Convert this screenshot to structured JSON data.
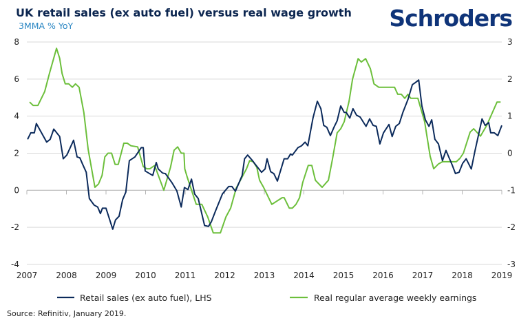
{
  "brand": "Schroders",
  "chart_data": {
    "type": "line",
    "title": "UK retail sales (ex auto fuel) versus real wage growth",
    "subtitle": "3MMA % YoY",
    "source": "Source: Refinitiv, January 2019.",
    "xlim": [
      2007,
      2019
    ],
    "x_ticks": [
      "2007",
      "2008",
      "2009",
      "2010",
      "2011",
      "2012",
      "2013",
      "2014",
      "2015",
      "2016",
      "2017",
      "2018",
      "2019"
    ],
    "ylim_left": [
      -4,
      8
    ],
    "y_ticks_left": [
      "8",
      "6",
      "4",
      "2",
      "0",
      "-2",
      "-4"
    ],
    "ylim_right": [
      -3,
      3
    ],
    "y_ticks_right": [
      "3",
      "2",
      "1",
      "0",
      "-1",
      "-2",
      "-3"
    ],
    "grid": true,
    "legend_position": "bottom",
    "colors": {
      "retail": "#0b2a5b",
      "wages": "#6cbf3b",
      "grid": "#d9d9d9",
      "axis": "#b5b5b5"
    },
    "series": [
      {
        "name": "Retail sales (ex auto fuel), LHS",
        "axis": "left",
        "points": [
          [
            2007.02,
            2.75
          ],
          [
            2007.1,
            3.1
          ],
          [
            2007.19,
            3.1
          ],
          [
            2007.24,
            3.6
          ],
          [
            2007.5,
            2.6
          ],
          [
            2007.59,
            2.75
          ],
          [
            2007.68,
            3.3
          ],
          [
            2007.83,
            2.9
          ],
          [
            2007.92,
            1.7
          ],
          [
            2008.01,
            1.9
          ],
          [
            2008.18,
            2.7
          ],
          [
            2008.27,
            1.8
          ],
          [
            2008.34,
            1.75
          ],
          [
            2008.41,
            1.4
          ],
          [
            2008.5,
            0.97
          ],
          [
            2008.58,
            -0.45
          ],
          [
            2008.7,
            -0.8
          ],
          [
            2008.79,
            -0.9
          ],
          [
            2008.86,
            -1.26
          ],
          [
            2008.91,
            -0.97
          ],
          [
            2009.0,
            -0.97
          ],
          [
            2009.17,
            -2.1
          ],
          [
            2009.24,
            -1.6
          ],
          [
            2009.33,
            -1.4
          ],
          [
            2009.42,
            -0.5
          ],
          [
            2009.5,
            -0.1
          ],
          [
            2009.59,
            1.6
          ],
          [
            2009.73,
            1.8
          ],
          [
            2009.89,
            2.3
          ],
          [
            2009.94,
            2.3
          ],
          [
            2009.99,
            1.04
          ],
          [
            2010.18,
            0.8
          ],
          [
            2010.27,
            1.5
          ],
          [
            2010.32,
            1.15
          ],
          [
            2010.43,
            0.93
          ],
          [
            2010.5,
            0.9
          ],
          [
            2010.67,
            0.4
          ],
          [
            2010.79,
            -0.03
          ],
          [
            2010.9,
            -0.9
          ],
          [
            2010.98,
            0.15
          ],
          [
            2011.07,
            0.04
          ],
          [
            2011.16,
            0.6
          ],
          [
            2011.24,
            -0.2
          ],
          [
            2011.33,
            -0.45
          ],
          [
            2011.49,
            -1.9
          ],
          [
            2011.59,
            -1.95
          ],
          [
            2011.66,
            -1.7
          ],
          [
            2011.77,
            -1.1
          ],
          [
            2011.94,
            -0.2
          ],
          [
            2012.1,
            0.2
          ],
          [
            2012.18,
            0.2
          ],
          [
            2012.27,
            -0.05
          ],
          [
            2012.44,
            0.8
          ],
          [
            2012.5,
            1.7
          ],
          [
            2012.58,
            1.9
          ],
          [
            2012.7,
            1.6
          ],
          [
            2012.79,
            1.35
          ],
          [
            2012.93,
            0.97
          ],
          [
            2013.02,
            1.15
          ],
          [
            2013.07,
            1.7
          ],
          [
            2013.16,
            1.0
          ],
          [
            2013.24,
            0.9
          ],
          [
            2013.33,
            0.5
          ],
          [
            2013.5,
            1.7
          ],
          [
            2013.59,
            1.7
          ],
          [
            2013.66,
            1.95
          ],
          [
            2013.71,
            1.9
          ],
          [
            2013.85,
            2.3
          ],
          [
            2013.94,
            2.4
          ],
          [
            2014.03,
            2.6
          ],
          [
            2014.1,
            2.4
          ],
          [
            2014.23,
            3.9
          ],
          [
            2014.34,
            4.8
          ],
          [
            2014.43,
            4.4
          ],
          [
            2014.5,
            3.5
          ],
          [
            2014.58,
            3.4
          ],
          [
            2014.67,
            2.95
          ],
          [
            2014.76,
            3.4
          ],
          [
            2014.84,
            3.75
          ],
          [
            2014.93,
            4.55
          ],
          [
            2015.02,
            4.2
          ],
          [
            2015.07,
            4.2
          ],
          [
            2015.16,
            3.9
          ],
          [
            2015.24,
            4.4
          ],
          [
            2015.33,
            4.05
          ],
          [
            2015.42,
            3.95
          ],
          [
            2015.57,
            3.45
          ],
          [
            2015.66,
            3.85
          ],
          [
            2015.75,
            3.5
          ],
          [
            2015.83,
            3.45
          ],
          [
            2015.92,
            2.5
          ],
          [
            2016.01,
            3.1
          ],
          [
            2016.15,
            3.55
          ],
          [
            2016.23,
            2.9
          ],
          [
            2016.32,
            3.45
          ],
          [
            2016.41,
            3.6
          ],
          [
            2016.5,
            4.2
          ],
          [
            2016.63,
            4.9
          ],
          [
            2016.74,
            5.7
          ],
          [
            2016.81,
            5.8
          ],
          [
            2016.9,
            5.95
          ],
          [
            2016.98,
            4.55
          ],
          [
            2017.07,
            3.8
          ],
          [
            2017.16,
            3.45
          ],
          [
            2017.23,
            3.8
          ],
          [
            2017.31,
            2.75
          ],
          [
            2017.4,
            2.5
          ],
          [
            2017.5,
            1.6
          ],
          [
            2017.59,
            2.15
          ],
          [
            2017.75,
            1.35
          ],
          [
            2017.83,
            0.9
          ],
          [
            2017.92,
            0.97
          ],
          [
            2018.01,
            1.45
          ],
          [
            2018.1,
            1.7
          ],
          [
            2018.23,
            1.15
          ],
          [
            2018.32,
            2.1
          ],
          [
            2018.5,
            3.85
          ],
          [
            2018.58,
            3.5
          ],
          [
            2018.67,
            3.65
          ],
          [
            2018.72,
            3.1
          ],
          [
            2018.81,
            3.1
          ],
          [
            2018.9,
            2.95
          ],
          [
            2019.0,
            3.5
          ]
        ]
      },
      {
        "name": "Real regular average weekly earnings",
        "axis": "right",
        "points": [
          [
            2007.07,
            1.38
          ],
          [
            2007.16,
            1.29
          ],
          [
            2007.28,
            1.29
          ],
          [
            2007.45,
            1.66
          ],
          [
            2007.57,
            2.15
          ],
          [
            2007.75,
            2.83
          ],
          [
            2007.83,
            2.56
          ],
          [
            2007.89,
            2.15
          ],
          [
            2007.97,
            1.87
          ],
          [
            2008.06,
            1.87
          ],
          [
            2008.15,
            1.78
          ],
          [
            2008.23,
            1.87
          ],
          [
            2008.32,
            1.78
          ],
          [
            2008.44,
            1.1
          ],
          [
            2008.55,
            0.1
          ],
          [
            2008.72,
            -0.92
          ],
          [
            2008.81,
            -0.83
          ],
          [
            2008.9,
            -0.6
          ],
          [
            2008.97,
            -0.1
          ],
          [
            2009.05,
            0
          ],
          [
            2009.14,
            0
          ],
          [
            2009.23,
            -0.3
          ],
          [
            2009.31,
            -0.3
          ],
          [
            2009.45,
            0.27
          ],
          [
            2009.54,
            0.27
          ],
          [
            2009.63,
            0.2
          ],
          [
            2009.8,
            0.17
          ],
          [
            2009.94,
            -0.36
          ],
          [
            2010.03,
            -0.42
          ],
          [
            2010.11,
            -0.42
          ],
          [
            2010.23,
            -0.33
          ],
          [
            2010.46,
            -1.0
          ],
          [
            2010.63,
            -0.38
          ],
          [
            2010.72,
            0.08
          ],
          [
            2010.81,
            0.17
          ],
          [
            2010.9,
            0
          ],
          [
            2010.97,
            0
          ],
          [
            2010.99,
            -0.42
          ],
          [
            2011.05,
            -0.64
          ],
          [
            2011.28,
            -1.38
          ],
          [
            2011.42,
            -1.38
          ],
          [
            2011.57,
            -1.72
          ],
          [
            2011.71,
            -2.15
          ],
          [
            2011.89,
            -2.15
          ],
          [
            2012.03,
            -1.72
          ],
          [
            2012.15,
            -1.48
          ],
          [
            2012.29,
            -0.94
          ],
          [
            2012.55,
            -0.42
          ],
          [
            2012.63,
            -0.2
          ],
          [
            2012.72,
            -0.23
          ],
          [
            2012.81,
            -0.38
          ],
          [
            2012.88,
            -0.73
          ],
          [
            2012.98,
            -0.92
          ],
          [
            2013.19,
            -1.38
          ],
          [
            2013.45,
            -1.2
          ],
          [
            2013.5,
            -1.2
          ],
          [
            2013.63,
            -1.48
          ],
          [
            2013.71,
            -1.48
          ],
          [
            2013.8,
            -1.38
          ],
          [
            2013.89,
            -1.2
          ],
          [
            2013.97,
            -0.79
          ],
          [
            2014.11,
            -0.33
          ],
          [
            2014.2,
            -0.33
          ],
          [
            2014.29,
            -0.73
          ],
          [
            2014.46,
            -0.92
          ],
          [
            2014.62,
            -0.73
          ],
          [
            2014.72,
            -0.17
          ],
          [
            2014.84,
            0.55
          ],
          [
            2014.93,
            0.66
          ],
          [
            2015.02,
            0.85
          ],
          [
            2015.14,
            1.4
          ],
          [
            2015.23,
            2.0
          ],
          [
            2015.37,
            2.55
          ],
          [
            2015.45,
            2.46
          ],
          [
            2015.56,
            2.55
          ],
          [
            2015.68,
            2.28
          ],
          [
            2015.77,
            1.87
          ],
          [
            2015.89,
            1.78
          ],
          [
            2016.29,
            1.78
          ],
          [
            2016.37,
            1.59
          ],
          [
            2016.46,
            1.59
          ],
          [
            2016.55,
            1.48
          ],
          [
            2016.63,
            1.59
          ],
          [
            2016.7,
            1.48
          ],
          [
            2016.88,
            1.48
          ],
          [
            2017.05,
            0.85
          ],
          [
            2017.19,
            -0.08
          ],
          [
            2017.28,
            -0.42
          ],
          [
            2017.4,
            -0.29
          ],
          [
            2017.5,
            -0.23
          ],
          [
            2017.85,
            -0.23
          ],
          [
            2017.94,
            -0.14
          ],
          [
            2018.03,
            0
          ],
          [
            2018.2,
            0.57
          ],
          [
            2018.29,
            0.66
          ],
          [
            2018.46,
            0.46
          ],
          [
            2018.62,
            0.75
          ],
          [
            2018.88,
            1.38
          ],
          [
            2018.97,
            1.38
          ]
        ]
      }
    ]
  }
}
